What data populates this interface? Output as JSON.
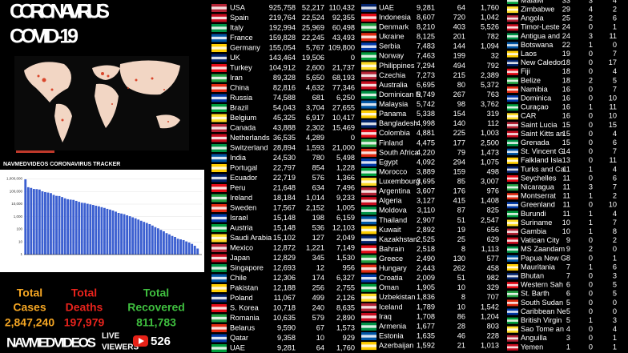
{
  "header": {
    "title_line1": "CORONAVIRUS",
    "title_line2": "COVID-19",
    "tracker_label": "NAVMEDVIDEOS CORONAVIRUS TRACKER"
  },
  "chart_data": {
    "type": "bar",
    "yscale": "log",
    "color": "#3b5fd0",
    "ylim": [
      1,
      3000000
    ],
    "yticks": [
      {
        "value": 1000000,
        "label": "1,000,000"
      },
      {
        "value": 100000,
        "label": "100,000"
      },
      {
        "value": 10000,
        "label": "10,000"
      },
      {
        "value": 1000,
        "label": "1,000"
      },
      100,
      10,
      1
    ],
    "values": [
      925758,
      219764,
      192994,
      159828,
      155054,
      143464,
      104912,
      89328,
      82816,
      74588,
      54043,
      45325,
      43888,
      36535,
      28894,
      24530,
      22797,
      21648,
      18184,
      15148,
      12872,
      12306,
      10718,
      9590,
      8607,
      7463,
      6695,
      5742,
      4998,
      4220,
      3695,
      3110,
      2525,
      2009,
      1789,
      1592,
      1300,
      1100,
      900,
      750,
      600,
      480,
      390,
      320,
      260,
      200,
      150,
      120,
      90,
      70,
      50,
      40,
      30,
      25,
      18,
      16,
      14,
      11,
      9,
      7,
      5,
      3,
      1
    ]
  },
  "totals": [
    {
      "label_line1": "Total",
      "label_line2": "Cases",
      "value": "2,847,240"
    },
    {
      "label_line1": "Total",
      "label_line2": "Deaths",
      "value": "197,979"
    },
    {
      "label_line1": "Total",
      "label_line2": "Recovered",
      "value": "811,783"
    }
  ],
  "footer": {
    "brand": "NAVMEDVIDEOS",
    "live_line1": "LIVE",
    "live_line2": "VIEWERS",
    "viewers": "526"
  },
  "tables": [
    {
      "rows": [
        [
          "USA",
          "925,758",
          "52,217",
          "110,432"
        ],
        [
          "Spain",
          "219,764",
          "22,524",
          "92,355"
        ],
        [
          "Italy",
          "192,994",
          "25,969",
          "60,498"
        ],
        [
          "France",
          "159,828",
          "22,245",
          "43,493"
        ],
        [
          "Germany",
          "155,054",
          "5,767",
          "109,800"
        ],
        [
          "UK",
          "143,464",
          "19,506",
          "0"
        ],
        [
          "Turkey",
          "104,912",
          "2,600",
          "21,737"
        ],
        [
          "Iran",
          "89,328",
          "5,650",
          "68,193"
        ],
        [
          "China",
          "82,816",
          "4,632",
          "77,346"
        ],
        [
          "Russia",
          "74,588",
          "681",
          "6,250"
        ],
        [
          "Brazil",
          "54,043",
          "3,704",
          "27,655"
        ],
        [
          "Belgium",
          "45,325",
          "6,917",
          "10,417"
        ],
        [
          "Canada",
          "43,888",
          "2,302",
          "15,469"
        ],
        [
          "Netherlands",
          "36,535",
          "4,289",
          "0"
        ],
        [
          "Switzerland",
          "28,894",
          "1,593",
          "21,000"
        ],
        [
          "India",
          "24,530",
          "780",
          "5,498"
        ],
        [
          "Portugal",
          "22,797",
          "854",
          "1,228"
        ],
        [
          "Ecuador",
          "22,719",
          "576",
          "1,366"
        ],
        [
          "Peru",
          "21,648",
          "634",
          "7,496"
        ],
        [
          "Ireland",
          "18,184",
          "1,014",
          "9,233"
        ],
        [
          "Sweden",
          "17,567",
          "2,152",
          "1,005"
        ],
        [
          "Israel",
          "15,148",
          "198",
          "6,159"
        ],
        [
          "Austria",
          "15,148",
          "536",
          "12,103"
        ],
        [
          "Saudi Arabia",
          "15,102",
          "127",
          "2,049"
        ],
        [
          "Mexico",
          "12,872",
          "1,221",
          "7,149"
        ],
        [
          "Japan",
          "12,829",
          "345",
          "1,530"
        ],
        [
          "Singapore",
          "12,693",
          "12",
          "956"
        ],
        [
          "Chile",
          "12,306",
          "174",
          "6,327"
        ],
        [
          "Pakistan",
          "12,188",
          "256",
          "2,755"
        ],
        [
          "Poland",
          "11,067",
          "499",
          "2,126"
        ],
        [
          "S. Korea",
          "10,718",
          "240",
          "8,635"
        ],
        [
          "Romania",
          "10,635",
          "579",
          "2,890"
        ],
        [
          "Belarus",
          "9,590",
          "67",
          "1,573"
        ],
        [
          "Qatar",
          "9,358",
          "10",
          "929"
        ],
        [
          "UAE",
          "9,281",
          "64",
          "1,760"
        ]
      ]
    },
    {
      "rows": [
        [
          "UAE",
          "9,281",
          "64",
          "1,760"
        ],
        [
          "Indonesia",
          "8,607",
          "720",
          "1,042"
        ],
        [
          "Denmark",
          "8,210",
          "403",
          "5,526"
        ],
        [
          "Ukraine",
          "8,125",
          "201",
          "782"
        ],
        [
          "Serbia",
          "7,483",
          "144",
          "1,094"
        ],
        [
          "Norway",
          "7,463",
          "199",
          "32"
        ],
        [
          "Philippines",
          "7,294",
          "494",
          "792"
        ],
        [
          "Czechia",
          "7,273",
          "215",
          "2,389"
        ],
        [
          "Australia",
          "6,695",
          "80",
          "5,372"
        ],
        [
          "Dominican R",
          "5,749",
          "267",
          "763"
        ],
        [
          "Malaysia",
          "5,742",
          "98",
          "3,762"
        ],
        [
          "Panama",
          "5,338",
          "154",
          "319"
        ],
        [
          "Bangladesh",
          "4,998",
          "140",
          "112"
        ],
        [
          "Colombia",
          "4,881",
          "225",
          "1,003"
        ],
        [
          "Finland",
          "4,475",
          "177",
          "2,500"
        ],
        [
          "South Africa",
          "4,220",
          "79",
          "1,473"
        ],
        [
          "Egypt",
          "4,092",
          "294",
          "1,075"
        ],
        [
          "Morocco",
          "3,889",
          "159",
          "498"
        ],
        [
          "Luxembourg",
          "3,695",
          "85",
          "3,007"
        ],
        [
          "Argentina",
          "3,607",
          "176",
          "976"
        ],
        [
          "Algeria",
          "3,127",
          "415",
          "1,408"
        ],
        [
          "Moldova",
          "3,110",
          "87",
          "825"
        ],
        [
          "Thailand",
          "2,907",
          "51",
          "2,547"
        ],
        [
          "Kuwait",
          "2,892",
          "19",
          "656"
        ],
        [
          "Kazakhstan",
          "2,525",
          "25",
          "629"
        ],
        [
          "Bahrain",
          "2,518",
          "8",
          "1,113"
        ],
        [
          "Greece",
          "2,490",
          "130",
          "577"
        ],
        [
          "Hungary",
          "2,443",
          "262",
          "458"
        ],
        [
          "Croatia",
          "2,009",
          "51",
          "982"
        ],
        [
          "Oman",
          "1,905",
          "10",
          "329"
        ],
        [
          "Uzbekistan",
          "1,836",
          "8",
          "707"
        ],
        [
          "Iceland",
          "1,789",
          "10",
          "1,542"
        ],
        [
          "Iraq",
          "1,708",
          "86",
          "1,204"
        ],
        [
          "Armenia",
          "1,677",
          "28",
          "803"
        ],
        [
          "Estonia",
          "1,635",
          "46",
          "228"
        ],
        [
          "Azerbaijan",
          "1,592",
          "21",
          "1,013"
        ]
      ]
    },
    {
      "rows": [
        [
          "Malawi",
          "33",
          "3",
          "4"
        ],
        [
          "Zimbabwe",
          "29",
          "4",
          "2"
        ],
        [
          "Angola",
          "25",
          "2",
          "6"
        ],
        [
          "Timor-Leste",
          "24",
          "0",
          "1"
        ],
        [
          "Antigua and",
          "24",
          "3",
          "11"
        ],
        [
          "Botswana",
          "22",
          "1",
          "0"
        ],
        [
          "Laos",
          "19",
          "0",
          "7"
        ],
        [
          "New Caledor",
          "18",
          "0",
          "17"
        ],
        [
          "Fiji",
          "18",
          "0",
          "4"
        ],
        [
          "Belize",
          "18",
          "2",
          "5"
        ],
        [
          "Namibia",
          "16",
          "0",
          "7"
        ],
        [
          "Dominica",
          "16",
          "0",
          "10"
        ],
        [
          "Curaçao",
          "16",
          "1",
          "11"
        ],
        [
          "CAR",
          "16",
          "0",
          "10"
        ],
        [
          "Saint Lucia",
          "15",
          "0",
          "15"
        ],
        [
          "Saint Kitts an",
          "15",
          "0",
          "4"
        ],
        [
          "Grenada",
          "15",
          "0",
          "6"
        ],
        [
          "St. Vincent G",
          "14",
          "0",
          "7"
        ],
        [
          "Falkland Isla",
          "13",
          "0",
          "11"
        ],
        [
          "Turks and Ca",
          "11",
          "1",
          "4"
        ],
        [
          "Seychelles",
          "11",
          "0",
          "6"
        ],
        [
          "Nicaragua",
          "11",
          "3",
          "7"
        ],
        [
          "Montserrat",
          "11",
          "1",
          "2"
        ],
        [
          "Greenland",
          "11",
          "0",
          "10"
        ],
        [
          "Burundi",
          "11",
          "1",
          "4"
        ],
        [
          "Suriname",
          "10",
          "1",
          "7"
        ],
        [
          "Gambia",
          "10",
          "1",
          "8"
        ],
        [
          "Vatican City",
          "9",
          "0",
          "2"
        ],
        [
          "MS Zaandam",
          "9",
          "2",
          "0"
        ],
        [
          "Papua New G",
          "8",
          "0",
          "1"
        ],
        [
          "Mauritania",
          "7",
          "1",
          "6"
        ],
        [
          "Bhutan",
          "7",
          "0",
          "3"
        ],
        [
          "Western Sah",
          "6",
          "0",
          "5"
        ],
        [
          "St. Barth",
          "6",
          "0",
          "5"
        ],
        [
          "South Sudan",
          "5",
          "0",
          "0"
        ],
        [
          "Caribbean Ne",
          "5",
          "0",
          "0"
        ],
        [
          "British Virgin",
          "5",
          "1",
          "3"
        ],
        [
          "Sao Tome an",
          "4",
          "0",
          "4"
        ],
        [
          "Anguilla",
          "3",
          "0",
          "1"
        ],
        [
          "Yemen",
          "1",
          "0",
          "1"
        ]
      ]
    }
  ]
}
